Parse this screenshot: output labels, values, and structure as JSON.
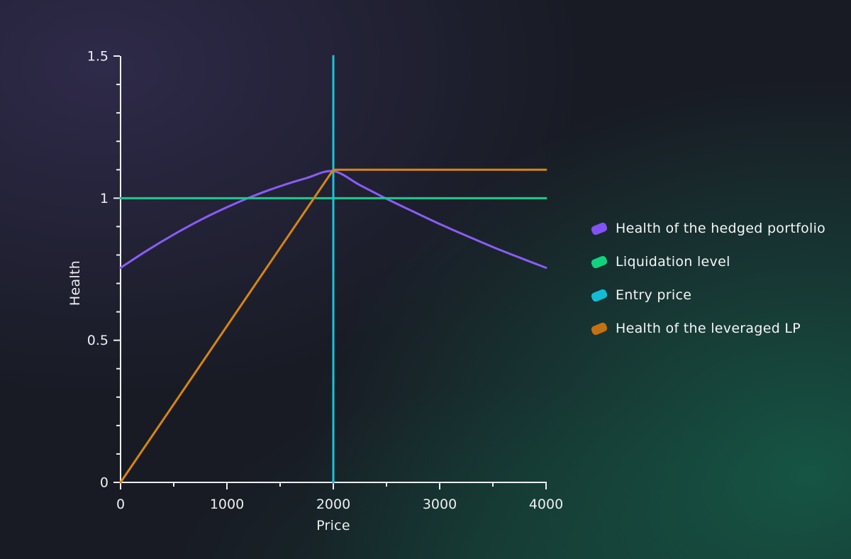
{
  "chart_data": {
    "type": "line",
    "title": "",
    "xlabel": "Price",
    "ylabel": "Health",
    "xlim": [
      0,
      4000
    ],
    "ylim": [
      0,
      1.5
    ],
    "grid": false,
    "legend_position": "right-of-plot",
    "axis_color": "#edeef2",
    "x_major_ticks": [
      0,
      1000,
      2000,
      3000,
      4000
    ],
    "x_tick_labels": [
      "0",
      "1000",
      "2000",
      "3000",
      "4000"
    ],
    "x_minor_ticks": [
      500,
      1500,
      2500,
      3500
    ],
    "y_major_ticks": [
      0,
      0.5,
      1,
      1.5
    ],
    "y_tick_labels": [
      "0",
      "0.5",
      "1",
      "1.5"
    ],
    "y_minor_ticks": [
      0.1,
      0.2,
      0.3,
      0.4,
      0.6,
      0.7,
      0.8,
      0.9,
      1.1,
      1.2,
      1.3,
      1.4
    ],
    "series": [
      {
        "name": "Health of the hedged portfolio",
        "color": "#8B5CF6",
        "smooth": true,
        "x": [
          0,
          250,
          500,
          750,
          1000,
          1250,
          1500,
          1750,
          2000,
          2250,
          2500,
          2750,
          3000,
          3250,
          3500,
          3750,
          4000
        ],
        "y": [
          0.755,
          0.816,
          0.872,
          0.923,
          0.968,
          1.008,
          1.042,
          1.071,
          1.095,
          1.046,
          0.998,
          0.953,
          0.909,
          0.868,
          0.828,
          0.791,
          0.755
        ]
      },
      {
        "name": "Liquidation level",
        "color": "#13CE8C",
        "smooth": false,
        "x": [
          0,
          4000
        ],
        "y": [
          1,
          1
        ]
      },
      {
        "name": "Entry price",
        "color": "#18C3DA",
        "smooth": false,
        "x": [
          2000,
          2000
        ],
        "y": [
          0,
          1.5
        ]
      },
      {
        "name": "Health of the leveraged LP",
        "color": "#D8860F",
        "smooth": false,
        "x": [
          0,
          2000,
          4000
        ],
        "y": [
          0,
          1.1,
          1.1
        ]
      }
    ]
  },
  "legend": {
    "items": [
      {
        "label": "Health of the hedged portfolio",
        "color": "#8352F5"
      },
      {
        "label": "Liquidation level",
        "color": "#10D37E"
      },
      {
        "label": "Entry price",
        "color": "#12BCD4"
      },
      {
        "label": "Health of the leveraged LP",
        "color": "#C4720F"
      }
    ]
  }
}
